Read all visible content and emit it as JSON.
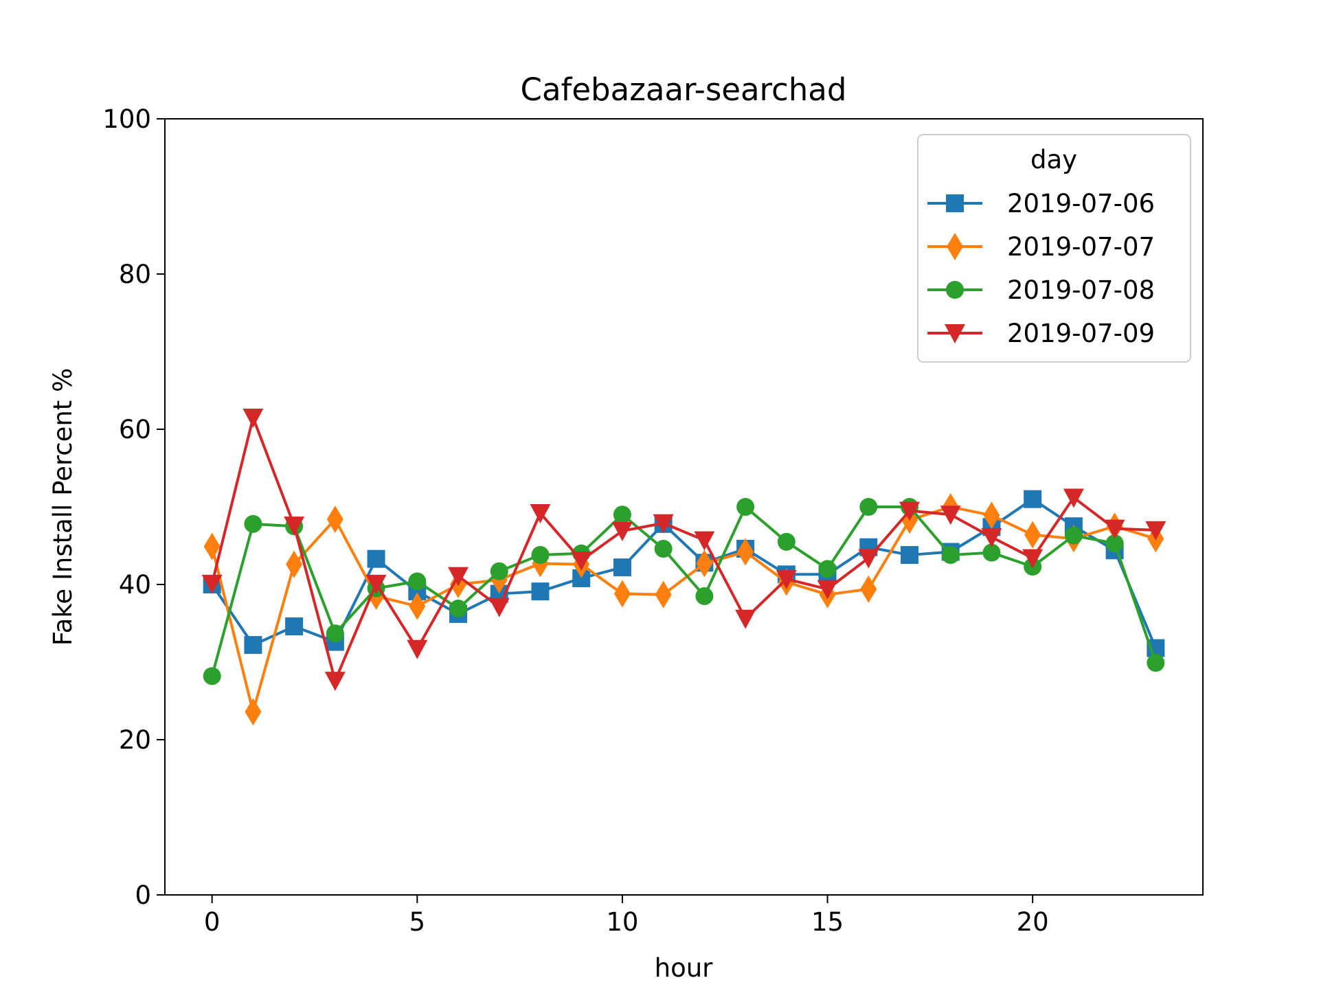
{
  "chart_data": {
    "type": "line",
    "title": "Cafebazaar-searchad",
    "xlabel": "hour",
    "ylabel": "Fake Install Percent %",
    "xlim": [
      -1.15,
      24.15
    ],
    "ylim": [
      0,
      100
    ],
    "xticks": [
      0,
      5,
      10,
      15,
      20
    ],
    "yticks": [
      0,
      20,
      40,
      60,
      80,
      100
    ],
    "grid": false,
    "legend": {
      "title": "day",
      "placement": "upper-right"
    },
    "x": [
      0,
      1,
      2,
      3,
      4,
      5,
      6,
      7,
      8,
      9,
      10,
      11,
      12,
      13,
      14,
      15,
      16,
      17,
      18,
      19,
      20,
      21,
      22,
      23
    ],
    "series": [
      {
        "name": "2019-07-06",
        "color": "#1f77b4",
        "marker": "square",
        "values": [
          40.0,
          32.2,
          34.6,
          32.6,
          43.3,
          39.1,
          36.2,
          38.8,
          39.1,
          40.8,
          42.2,
          47.8,
          42.8,
          44.6,
          41.3,
          41.3,
          44.8,
          43.8,
          44.2,
          47.4,
          51.0,
          47.5,
          44.4,
          31.8
        ]
      },
      {
        "name": "2019-07-07",
        "color": "#ff7f0e",
        "marker": "thin-diamond",
        "values": [
          44.9,
          23.6,
          42.6,
          48.4,
          38.5,
          37.2,
          40.0,
          40.6,
          42.7,
          42.6,
          38.8,
          38.7,
          42.7,
          44.2,
          40.3,
          38.7,
          39.4,
          48.3,
          50.0,
          48.9,
          46.4,
          45.9,
          47.5,
          45.9
        ]
      },
      {
        "name": "2019-07-08",
        "color": "#2ca02c",
        "marker": "circle",
        "values": [
          28.2,
          47.8,
          47.5,
          33.7,
          39.5,
          40.4,
          36.9,
          41.7,
          43.8,
          44.0,
          49.0,
          44.6,
          38.5,
          50.0,
          45.5,
          42.0,
          50.0,
          50.0,
          43.8,
          44.1,
          42.3,
          46.3,
          45.3,
          29.9
        ]
      },
      {
        "name": "2019-07-09",
        "color": "#d62728",
        "marker": "triangle-down",
        "values": [
          40.1,
          61.5,
          47.6,
          27.6,
          40.1,
          31.7,
          41.1,
          37.1,
          49.2,
          43.1,
          46.9,
          47.9,
          45.7,
          35.6,
          40.7,
          39.4,
          43.4,
          49.5,
          49.0,
          46.1,
          43.4,
          51.2,
          47.2,
          47.0
        ]
      }
    ]
  }
}
